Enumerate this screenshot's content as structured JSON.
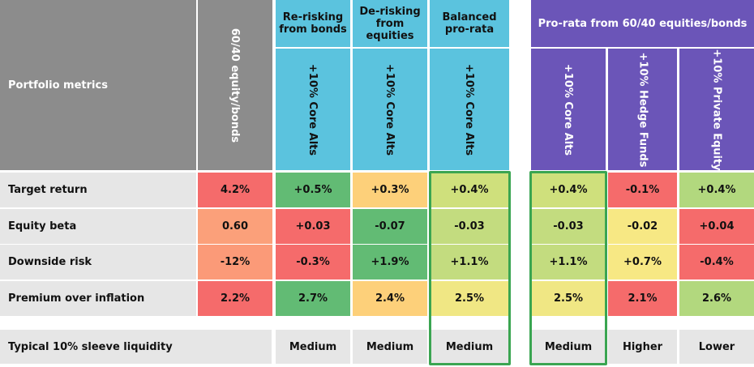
{
  "header": {
    "portfolio_metrics_label": "Portfolio metrics",
    "baseline_label": "60/40 equity/bonds",
    "groups": [
      {
        "label": "Re-risking from bonds"
      },
      {
        "label": "De-risking from equities"
      },
      {
        "label": "Balanced pro-rata"
      },
      {
        "label": "Pro-rata from 60/40 equities/bonds"
      }
    ],
    "columns": [
      {
        "label": "+10% Core Alts"
      },
      {
        "label": "+10% Core Alts"
      },
      {
        "label": "+10% Core Alts"
      },
      {
        "label": "+10% Core Alts"
      },
      {
        "label": "+10% Hedge Funds"
      },
      {
        "label": "+10% Private Equity"
      }
    ]
  },
  "rows": [
    {
      "label": "Target return",
      "cells": [
        {
          "value": "4.2%",
          "color": "#f56b6b"
        },
        {
          "value": "+0.5%",
          "color": "#62bb74"
        },
        {
          "value": "+0.3%",
          "color": "#fdd07a"
        },
        {
          "value": "+0.4%",
          "color": "#cfe07c"
        },
        {
          "value": "+0.4%",
          "color": "#cfe07c"
        },
        {
          "value": "-0.1%",
          "color": "#f56b6b"
        },
        {
          "value": "+0.4%",
          "color": "#b2d87e"
        }
      ]
    },
    {
      "label": "Equity beta",
      "cells": [
        {
          "value": "0.60",
          "color": "#fba07a"
        },
        {
          "value": "+0.03",
          "color": "#f56b6b"
        },
        {
          "value": "-0.07",
          "color": "#62bb74"
        },
        {
          "value": "-0.03",
          "color": "#c3dc7f"
        },
        {
          "value": "-0.03",
          "color": "#c3dc7f"
        },
        {
          "value": "-0.02",
          "color": "#f7e884"
        },
        {
          "value": "+0.04",
          "color": "#f56b6b"
        }
      ]
    },
    {
      "label": "Downside risk",
      "cells": [
        {
          "value": "-12%",
          "color": "#fb9a78"
        },
        {
          "value": "-0.3%",
          "color": "#f56b6b"
        },
        {
          "value": "+1.9%",
          "color": "#62bb74"
        },
        {
          "value": "+1.1%",
          "color": "#c3dc7f"
        },
        {
          "value": "+1.1%",
          "color": "#c3dc7f"
        },
        {
          "value": "+0.7%",
          "color": "#f7e884"
        },
        {
          "value": "-0.4%",
          "color": "#f56b6b"
        }
      ]
    },
    {
      "label": "Premium over inflation",
      "cells": [
        {
          "value": "2.2%",
          "color": "#f56b6b"
        },
        {
          "value": "2.7%",
          "color": "#62bb74"
        },
        {
          "value": "2.4%",
          "color": "#fdd07a"
        },
        {
          "value": "2.5%",
          "color": "#f0e784"
        },
        {
          "value": "2.5%",
          "color": "#f0e784"
        },
        {
          "value": "2.1%",
          "color": "#f56b6b"
        },
        {
          "value": "2.6%",
          "color": "#b2d87e"
        }
      ]
    }
  ],
  "liquidity": {
    "label": "Typical 10% sleeve liquidity",
    "values": [
      "",
      "Medium",
      "Medium",
      "Medium",
      "Medium",
      "Higher",
      "Lower"
    ]
  }
}
